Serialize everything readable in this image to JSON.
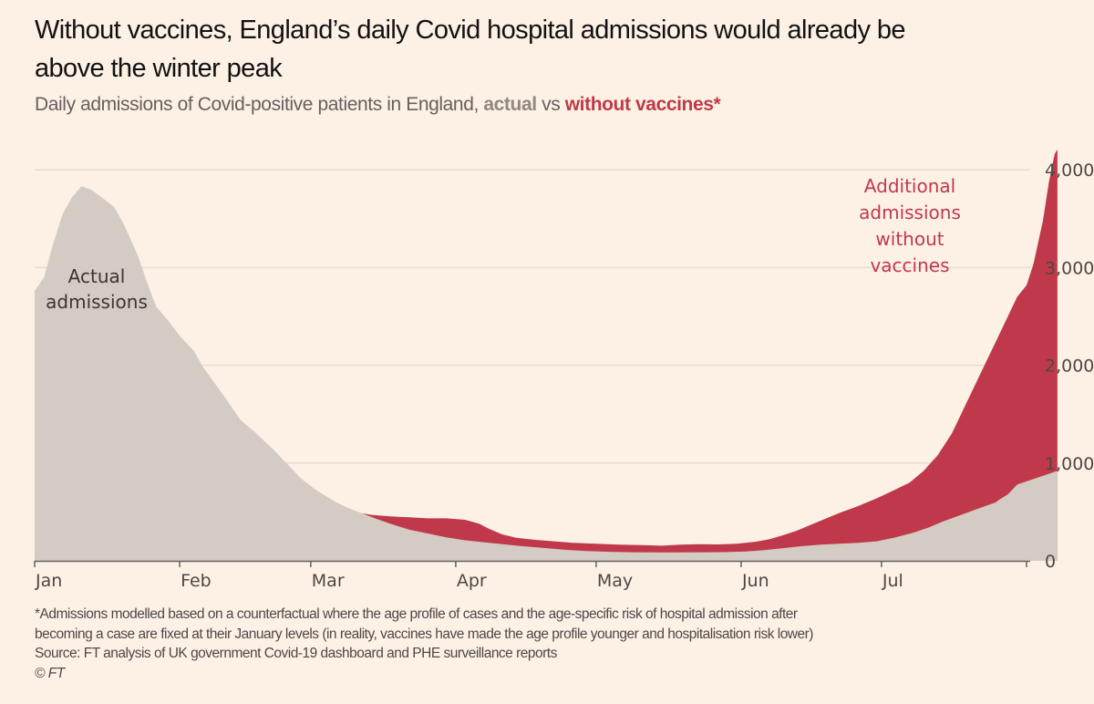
{
  "title": "Without vaccines, England’s daily Covid hospital admissions would already be above the winter peak",
  "subtitle": {
    "prefix": "Daily admissions of Covid-positive patients in England, ",
    "actual": "actual",
    "vs": " vs ",
    "without": "without vaccines*"
  },
  "notes": {
    "footnote_line1": "*Admissions modelled based on a counterfactual where the age profile of cases and the age-specific risk of hospital admission after",
    "footnote_line2": "becoming a case are fixed at their January levels (in reality, vaccines have made the age profile younger and hospitalisation risk lower)",
    "source": "Source: FT analysis of UK government Covid-19 dashboard and PHE surveillance reports",
    "copyright": "© FT"
  },
  "colors": {
    "background": "#fdf1e6",
    "actual": "#d3cbc4",
    "without_vaccines": "#c0394a",
    "gridline": "#e8dccf",
    "axis": "#66605c"
  },
  "chart_data": {
    "type": "area",
    "title": "Without vaccines, England’s daily Covid hospital admissions would already be above the winter peak",
    "subtitle": "Daily admissions of Covid-positive patients in England, actual vs without vaccines*",
    "xlabel": "",
    "ylabel": "",
    "x_unit": "day of year 2021 (0 = 1 Jan)",
    "xlim": [
      0,
      212
    ],
    "ylim": [
      0,
      4200
    ],
    "y_ticks": [
      0,
      1000,
      2000,
      3000,
      4000
    ],
    "y_tick_labels": [
      "0",
      "1,000",
      "2,000",
      "3,000",
      "4,000"
    ],
    "x_ticks": [
      0,
      31,
      59,
      90,
      120,
      151,
      181,
      212
    ],
    "x_tick_labels": [
      "Jan",
      "Feb",
      "Mar",
      "Apr",
      "May",
      "Jun",
      "Jul",
      ""
    ],
    "grid": true,
    "y_axis_position": "right",
    "annotations": [
      {
        "text": [
          "Actual",
          "admissions"
        ],
        "series": "actual"
      },
      {
        "text": [
          "Additional",
          "admissions",
          "without",
          "vaccines"
        ],
        "series": "without_vaccines"
      }
    ],
    "series": [
      {
        "name": "Actual admissions",
        "key": "actual",
        "points": [
          [
            0,
            2760
          ],
          [
            2,
            2900
          ],
          [
            4,
            3250
          ],
          [
            6,
            3550
          ],
          [
            8,
            3720
          ],
          [
            10,
            3830
          ],
          [
            12,
            3800
          ],
          [
            14,
            3730
          ],
          [
            17,
            3620
          ],
          [
            19,
            3450
          ],
          [
            22,
            3130
          ],
          [
            24,
            2850
          ],
          [
            26,
            2600
          ],
          [
            29,
            2430
          ],
          [
            31,
            2300
          ],
          [
            34,
            2150
          ],
          [
            36,
            1980
          ],
          [
            38,
            1850
          ],
          [
            41,
            1650
          ],
          [
            44,
            1440
          ],
          [
            47,
            1320
          ],
          [
            51,
            1140
          ],
          [
            54,
            990
          ],
          [
            57,
            840
          ],
          [
            60,
            730
          ],
          [
            64,
            610
          ],
          [
            67,
            540
          ],
          [
            70,
            486
          ],
          [
            73,
            430
          ],
          [
            76,
            380
          ],
          [
            80,
            320
          ],
          [
            84,
            280
          ],
          [
            88,
            240
          ],
          [
            92,
            210
          ],
          [
            96,
            190
          ],
          [
            100,
            170
          ],
          [
            104,
            150
          ],
          [
            108,
            135
          ],
          [
            113,
            115
          ],
          [
            118,
            100
          ],
          [
            123,
            92
          ],
          [
            128,
            88
          ],
          [
            133,
            86
          ],
          [
            138,
            86
          ],
          [
            143,
            88
          ],
          [
            148,
            90
          ],
          [
            152,
            95
          ],
          [
            156,
            110
          ],
          [
            160,
            130
          ],
          [
            164,
            150
          ],
          [
            168,
            165
          ],
          [
            172,
            175
          ],
          [
            176,
            185
          ],
          [
            180,
            200
          ],
          [
            184,
            240
          ],
          [
            188,
            290
          ],
          [
            191,
            340
          ],
          [
            194,
            400
          ],
          [
            198,
            470
          ],
          [
            202,
            540
          ],
          [
            206,
            620
          ],
          [
            208,
            680
          ],
          [
            210,
            780
          ],
          [
            205.5,
            600
          ],
          [
            206,
            620
          ]
        ]
      },
      {
        "name": "Without vaccines",
        "key": "without_vaccines",
        "points": [
          [
            70,
            486
          ],
          [
            72,
            470
          ],
          [
            76,
            455
          ],
          [
            80,
            445
          ],
          [
            84,
            435
          ],
          [
            88,
            435
          ],
          [
            92,
            420
          ],
          [
            95,
            380
          ],
          [
            97,
            330
          ],
          [
            100,
            270
          ],
          [
            103,
            235
          ],
          [
            107,
            215
          ],
          [
            111,
            200
          ],
          [
            115,
            185
          ],
          [
            120,
            175
          ],
          [
            125,
            165
          ],
          [
            130,
            160
          ],
          [
            134,
            155
          ],
          [
            138,
            165
          ],
          [
            142,
            170
          ],
          [
            146,
            168
          ],
          [
            150,
            175
          ],
          [
            154,
            195
          ],
          [
            157,
            220
          ],
          [
            160,
            262
          ],
          [
            163,
            310
          ],
          [
            166,
            370
          ],
          [
            169,
            430
          ],
          [
            172,
            490
          ],
          [
            176,
            560
          ],
          [
            180,
            640
          ],
          [
            184,
            730
          ],
          [
            187,
            800
          ],
          [
            190,
            920
          ],
          [
            193,
            1080
          ],
          [
            196,
            1300
          ],
          [
            199,
            1600
          ],
          [
            202,
            1900
          ],
          [
            205,
            2200
          ],
          [
            208,
            2500
          ],
          [
            210,
            2700
          ],
          [
            212,
            2820
          ],
          [
            213.5,
            3040
          ],
          [
            215.5,
            3480
          ],
          [
            216.8,
            3880
          ],
          [
            218,
            4160
          ],
          [
            218.6,
            4210
          ]
        ]
      }
    ]
  }
}
